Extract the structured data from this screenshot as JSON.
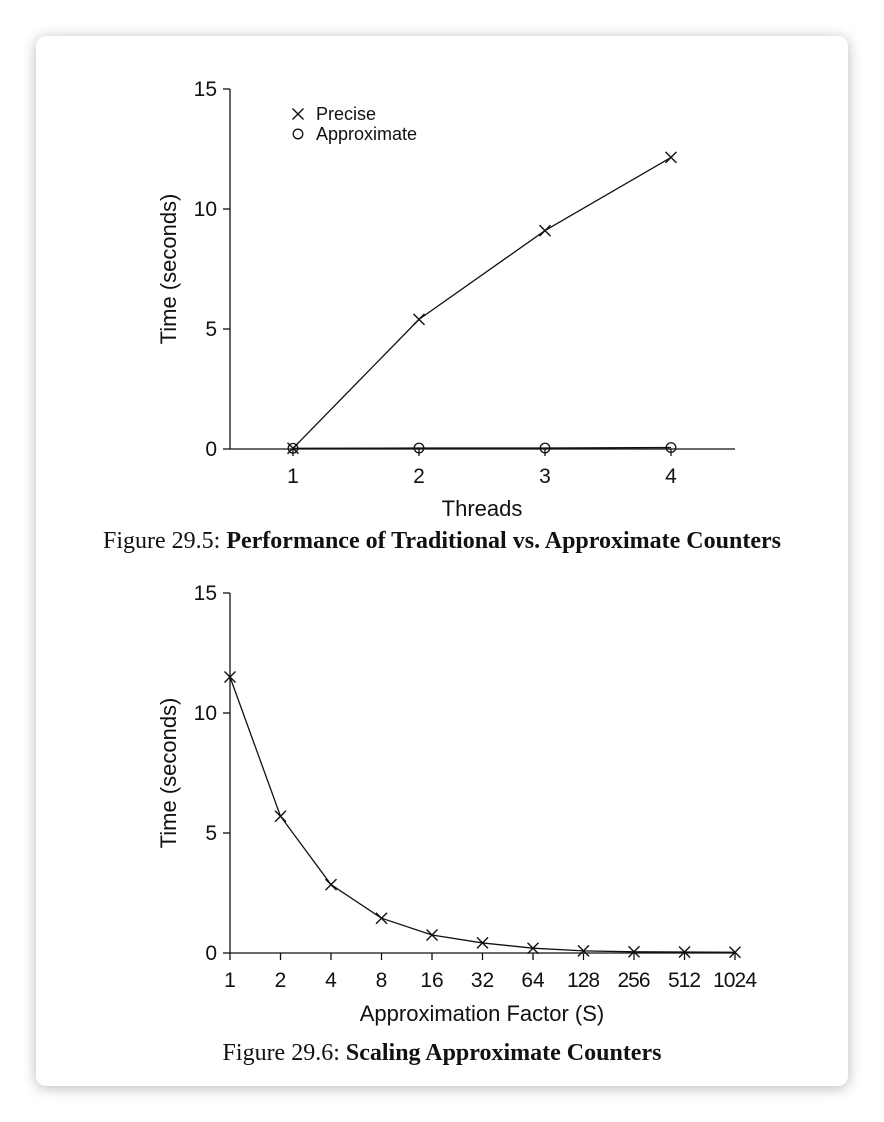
{
  "figures": [
    {
      "caption_number": "Figure 29.5:",
      "caption_title": "Performance of Traditional vs. Approximate Counters"
    },
    {
      "caption_number": "Figure 29.6:",
      "caption_title": "Scaling Approximate Counters"
    }
  ],
  "chart_data": [
    {
      "type": "line",
      "title": "",
      "xlabel": "Threads",
      "ylabel": "Time (seconds)",
      "x": [
        1,
        2,
        3,
        4
      ],
      "xticks": [
        "1",
        "2",
        "3",
        "4"
      ],
      "yticks": [
        "0",
        "5",
        "10",
        "15"
      ],
      "ylim": [
        0,
        15
      ],
      "grid": false,
      "legend_position": "top-left",
      "series": [
        {
          "name": "Precise",
          "marker": "x",
          "values": [
            0.03,
            5.4,
            9.1,
            12.15
          ]
        },
        {
          "name": "Approximate",
          "marker": "o",
          "values": [
            0.03,
            0.04,
            0.04,
            0.06
          ]
        }
      ]
    },
    {
      "type": "line",
      "title": "",
      "xlabel": "Approximation Factor (S)",
      "ylabel": "Time (seconds)",
      "categories": [
        "1",
        "2",
        "4",
        "8",
        "16",
        "32",
        "64",
        "128",
        "256",
        "512",
        "1024"
      ],
      "yticks": [
        "0",
        "5",
        "10",
        "15"
      ],
      "ylim": [
        0,
        15
      ],
      "grid": false,
      "series": [
        {
          "marker": "x",
          "values": [
            11.5,
            5.7,
            2.85,
            1.45,
            0.75,
            0.42,
            0.2,
            0.09,
            0.05,
            0.04,
            0.03
          ]
        }
      ]
    }
  ],
  "colors": {
    "ink": "#111111",
    "background": "#ffffff"
  }
}
